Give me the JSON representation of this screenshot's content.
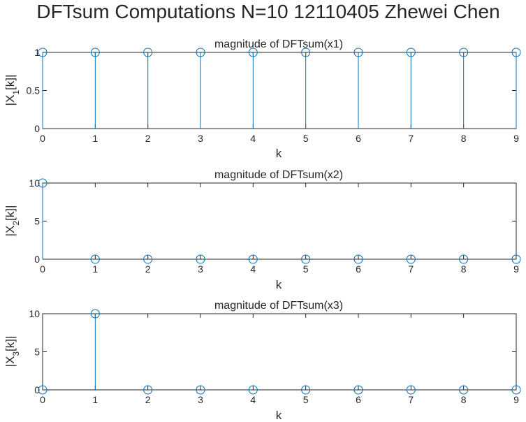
{
  "figure": {
    "title": "DFTsum Computations N=10 12110405 Zhewei Chen"
  },
  "chart_data": [
    {
      "type": "stem",
      "title": "magnitude of DFTsum(x1)",
      "xlabel": "k",
      "ylabel_main": "|X",
      "ylabel_sub": "1",
      "ylabel_tail": "[k]|",
      "x": [
        0,
        1,
        2,
        3,
        4,
        5,
        6,
        7,
        8,
        9
      ],
      "values": [
        1,
        1,
        1,
        1,
        1,
        1,
        1,
        1,
        1,
        1
      ],
      "xlim": [
        0,
        9
      ],
      "ylim": [
        0,
        1
      ],
      "xticks": [
        "0",
        "1",
        "2",
        "3",
        "4",
        "5",
        "6",
        "7",
        "8",
        "9"
      ],
      "yticks": [
        "0",
        "0.5",
        "1"
      ],
      "color": "#0072BD"
    },
    {
      "type": "stem",
      "title": "magnitude of DFTsum(x2)",
      "xlabel": "k",
      "ylabel_main": "|X",
      "ylabel_sub": "2",
      "ylabel_tail": "[k]|",
      "x": [
        0,
        1,
        2,
        3,
        4,
        5,
        6,
        7,
        8,
        9
      ],
      "values": [
        10,
        0,
        0,
        0,
        0,
        0,
        0,
        0,
        0,
        0
      ],
      "xlim": [
        0,
        9
      ],
      "ylim": [
        0,
        10
      ],
      "xticks": [
        "0",
        "1",
        "2",
        "3",
        "4",
        "5",
        "6",
        "7",
        "8",
        "9"
      ],
      "yticks": [
        "0",
        "5",
        "10"
      ],
      "color": "#0072BD"
    },
    {
      "type": "stem",
      "title": "magnitude of DFTsum(x3)",
      "xlabel": "k",
      "ylabel_main": "|X",
      "ylabel_sub": "3",
      "ylabel_tail": "[k]|",
      "x": [
        0,
        1,
        2,
        3,
        4,
        5,
        6,
        7,
        8,
        9
      ],
      "values": [
        0,
        10,
        0,
        0,
        0,
        0,
        0,
        0,
        0,
        0
      ],
      "xlim": [
        0,
        9
      ],
      "ylim": [
        0,
        10
      ],
      "xticks": [
        "0",
        "1",
        "2",
        "3",
        "4",
        "5",
        "6",
        "7",
        "8",
        "9"
      ],
      "yticks": [
        "0",
        "5",
        "10"
      ],
      "color": "#0072BD"
    }
  ]
}
